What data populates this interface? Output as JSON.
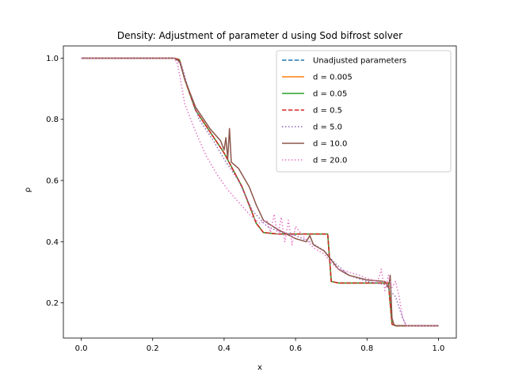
{
  "chart_data": {
    "type": "line",
    "title": "Density: Adjustment of parameter d using Sod bifrost solver",
    "xlabel": "x",
    "ylabel": "ρ",
    "xlim": [
      -0.05,
      1.05
    ],
    "ylim": [
      0.085,
      1.04
    ],
    "xticks": [
      0.0,
      0.2,
      0.4,
      0.6,
      0.8,
      1.0
    ],
    "xtick_labels": [
      "0.0",
      "0.2",
      "0.4",
      "0.6",
      "0.8",
      "1.0"
    ],
    "yticks": [
      0.2,
      0.4,
      0.6,
      0.8,
      1.0
    ],
    "ytick_labels": [
      "0.2",
      "0.4",
      "0.6",
      "0.8",
      "1.0"
    ],
    "grid": false,
    "legend_position": "top-right",
    "series": [
      {
        "name": "Unadjusted parameters",
        "color": "#1f77b4",
        "style": "dashed",
        "points": [
          [
            0.0,
            1.0
          ],
          [
            0.26,
            1.0
          ],
          [
            0.275,
            0.995
          ],
          [
            0.29,
            0.93
          ],
          [
            0.32,
            0.83
          ],
          [
            0.36,
            0.76
          ],
          [
            0.4,
            0.69
          ],
          [
            0.45,
            0.58
          ],
          [
            0.49,
            0.46
          ],
          [
            0.51,
            0.43
          ],
          [
            0.55,
            0.425
          ],
          [
            0.6,
            0.425
          ],
          [
            0.69,
            0.425
          ],
          [
            0.7,
            0.27
          ],
          [
            0.72,
            0.265
          ],
          [
            0.76,
            0.265
          ],
          [
            0.86,
            0.265
          ],
          [
            0.87,
            0.13
          ],
          [
            0.88,
            0.125
          ],
          [
            1.0,
            0.125
          ]
        ]
      },
      {
        "name": "d = 0.005",
        "color": "#ff7f0e",
        "style": "solid",
        "points": [
          [
            0.0,
            1.0
          ],
          [
            0.26,
            1.0
          ],
          [
            0.275,
            0.995
          ],
          [
            0.29,
            0.93
          ],
          [
            0.32,
            0.83
          ],
          [
            0.36,
            0.76
          ],
          [
            0.4,
            0.69
          ],
          [
            0.45,
            0.58
          ],
          [
            0.49,
            0.46
          ],
          [
            0.51,
            0.43
          ],
          [
            0.55,
            0.425
          ],
          [
            0.6,
            0.425
          ],
          [
            0.69,
            0.425
          ],
          [
            0.7,
            0.27
          ],
          [
            0.72,
            0.265
          ],
          [
            0.76,
            0.265
          ],
          [
            0.86,
            0.265
          ],
          [
            0.87,
            0.13
          ],
          [
            0.88,
            0.125
          ],
          [
            1.0,
            0.125
          ]
        ]
      },
      {
        "name": "d = 0.05",
        "color": "#2ca02c",
        "style": "solid",
        "points": [
          [
            0.0,
            1.0
          ],
          [
            0.26,
            1.0
          ],
          [
            0.275,
            0.995
          ],
          [
            0.29,
            0.93
          ],
          [
            0.32,
            0.83
          ],
          [
            0.36,
            0.76
          ],
          [
            0.4,
            0.69
          ],
          [
            0.45,
            0.58
          ],
          [
            0.49,
            0.46
          ],
          [
            0.51,
            0.43
          ],
          [
            0.55,
            0.425
          ],
          [
            0.6,
            0.425
          ],
          [
            0.69,
            0.425
          ],
          [
            0.7,
            0.27
          ],
          [
            0.72,
            0.265
          ],
          [
            0.76,
            0.265
          ],
          [
            0.86,
            0.265
          ],
          [
            0.87,
            0.13
          ],
          [
            0.88,
            0.125
          ],
          [
            1.0,
            0.125
          ]
        ]
      },
      {
        "name": "d = 0.5",
        "color": "#d62728",
        "style": "dashed",
        "points": [
          [
            0.0,
            1.0
          ],
          [
            0.26,
            1.0
          ],
          [
            0.275,
            0.995
          ],
          [
            0.29,
            0.93
          ],
          [
            0.32,
            0.83
          ],
          [
            0.36,
            0.76
          ],
          [
            0.4,
            0.69
          ],
          [
            0.45,
            0.58
          ],
          [
            0.49,
            0.46
          ],
          [
            0.51,
            0.43
          ],
          [
            0.55,
            0.425
          ],
          [
            0.6,
            0.425
          ],
          [
            0.69,
            0.425
          ],
          [
            0.7,
            0.27
          ],
          [
            0.72,
            0.265
          ],
          [
            0.76,
            0.265
          ],
          [
            0.86,
            0.265
          ],
          [
            0.87,
            0.13
          ],
          [
            0.88,
            0.125
          ],
          [
            1.0,
            0.125
          ]
        ]
      },
      {
        "name": "d = 5.0",
        "color": "#9467bd",
        "style": "dotted",
        "points": [
          [
            0.0,
            1.0
          ],
          [
            0.26,
            1.0
          ],
          [
            0.28,
            0.98
          ],
          [
            0.3,
            0.9
          ],
          [
            0.33,
            0.8
          ],
          [
            0.37,
            0.73
          ],
          [
            0.4,
            0.67
          ],
          [
            0.44,
            0.6
          ],
          [
            0.48,
            0.5
          ],
          [
            0.52,
            0.45
          ],
          [
            0.56,
            0.43
          ],
          [
            0.6,
            0.42
          ],
          [
            0.64,
            0.4
          ],
          [
            0.68,
            0.37
          ],
          [
            0.71,
            0.33
          ],
          [
            0.75,
            0.29
          ],
          [
            0.8,
            0.27
          ],
          [
            0.85,
            0.26
          ],
          [
            0.88,
            0.22
          ],
          [
            0.9,
            0.15
          ],
          [
            0.91,
            0.125
          ],
          [
            1.0,
            0.125
          ]
        ]
      },
      {
        "name": "d = 10.0",
        "color": "#8c564b",
        "style": "solid",
        "points": [
          [
            0.0,
            1.0
          ],
          [
            0.26,
            1.0
          ],
          [
            0.275,
            0.99
          ],
          [
            0.29,
            0.93
          ],
          [
            0.32,
            0.84
          ],
          [
            0.36,
            0.77
          ],
          [
            0.39,
            0.73
          ],
          [
            0.4,
            0.7
          ],
          [
            0.405,
            0.74
          ],
          [
            0.41,
            0.67
          ],
          [
            0.415,
            0.77
          ],
          [
            0.42,
            0.66
          ],
          [
            0.44,
            0.64
          ],
          [
            0.47,
            0.58
          ],
          [
            0.49,
            0.52
          ],
          [
            0.51,
            0.47
          ],
          [
            0.55,
            0.44
          ],
          [
            0.6,
            0.41
          ],
          [
            0.63,
            0.4
          ],
          [
            0.64,
            0.42
          ],
          [
            0.65,
            0.39
          ],
          [
            0.68,
            0.37
          ],
          [
            0.7,
            0.34
          ],
          [
            0.72,
            0.31
          ],
          [
            0.75,
            0.29
          ],
          [
            0.8,
            0.275
          ],
          [
            0.85,
            0.27
          ],
          [
            0.86,
            0.25
          ],
          [
            0.865,
            0.29
          ],
          [
            0.87,
            0.15
          ],
          [
            0.875,
            0.13
          ],
          [
            0.88,
            0.125
          ],
          [
            1.0,
            0.125
          ]
        ]
      },
      {
        "name": "d = 20.0",
        "color": "#e377c2",
        "style": "dotted",
        "points": [
          [
            0.0,
            1.0
          ],
          [
            0.26,
            1.0
          ],
          [
            0.27,
            0.98
          ],
          [
            0.29,
            0.85
          ],
          [
            0.32,
            0.76
          ],
          [
            0.35,
            0.68
          ],
          [
            0.38,
            0.62
          ],
          [
            0.41,
            0.57
          ],
          [
            0.44,
            0.53
          ],
          [
            0.47,
            0.49
          ],
          [
            0.5,
            0.46
          ],
          [
            0.52,
            0.47
          ],
          [
            0.53,
            0.43
          ],
          [
            0.54,
            0.49
          ],
          [
            0.55,
            0.42
          ],
          [
            0.56,
            0.48
          ],
          [
            0.57,
            0.4
          ],
          [
            0.58,
            0.47
          ],
          [
            0.59,
            0.39
          ],
          [
            0.6,
            0.45
          ],
          [
            0.62,
            0.42
          ],
          [
            0.65,
            0.38
          ],
          [
            0.68,
            0.36
          ],
          [
            0.7,
            0.33
          ],
          [
            0.72,
            0.31
          ],
          [
            0.75,
            0.3
          ],
          [
            0.78,
            0.29
          ],
          [
            0.8,
            0.28
          ],
          [
            0.83,
            0.27
          ],
          [
            0.84,
            0.31
          ],
          [
            0.85,
            0.24
          ],
          [
            0.86,
            0.29
          ],
          [
            0.87,
            0.25
          ],
          [
            0.88,
            0.27
          ],
          [
            0.89,
            0.22
          ],
          [
            0.9,
            0.15
          ],
          [
            0.91,
            0.125
          ],
          [
            1.0,
            0.125
          ]
        ]
      }
    ]
  }
}
